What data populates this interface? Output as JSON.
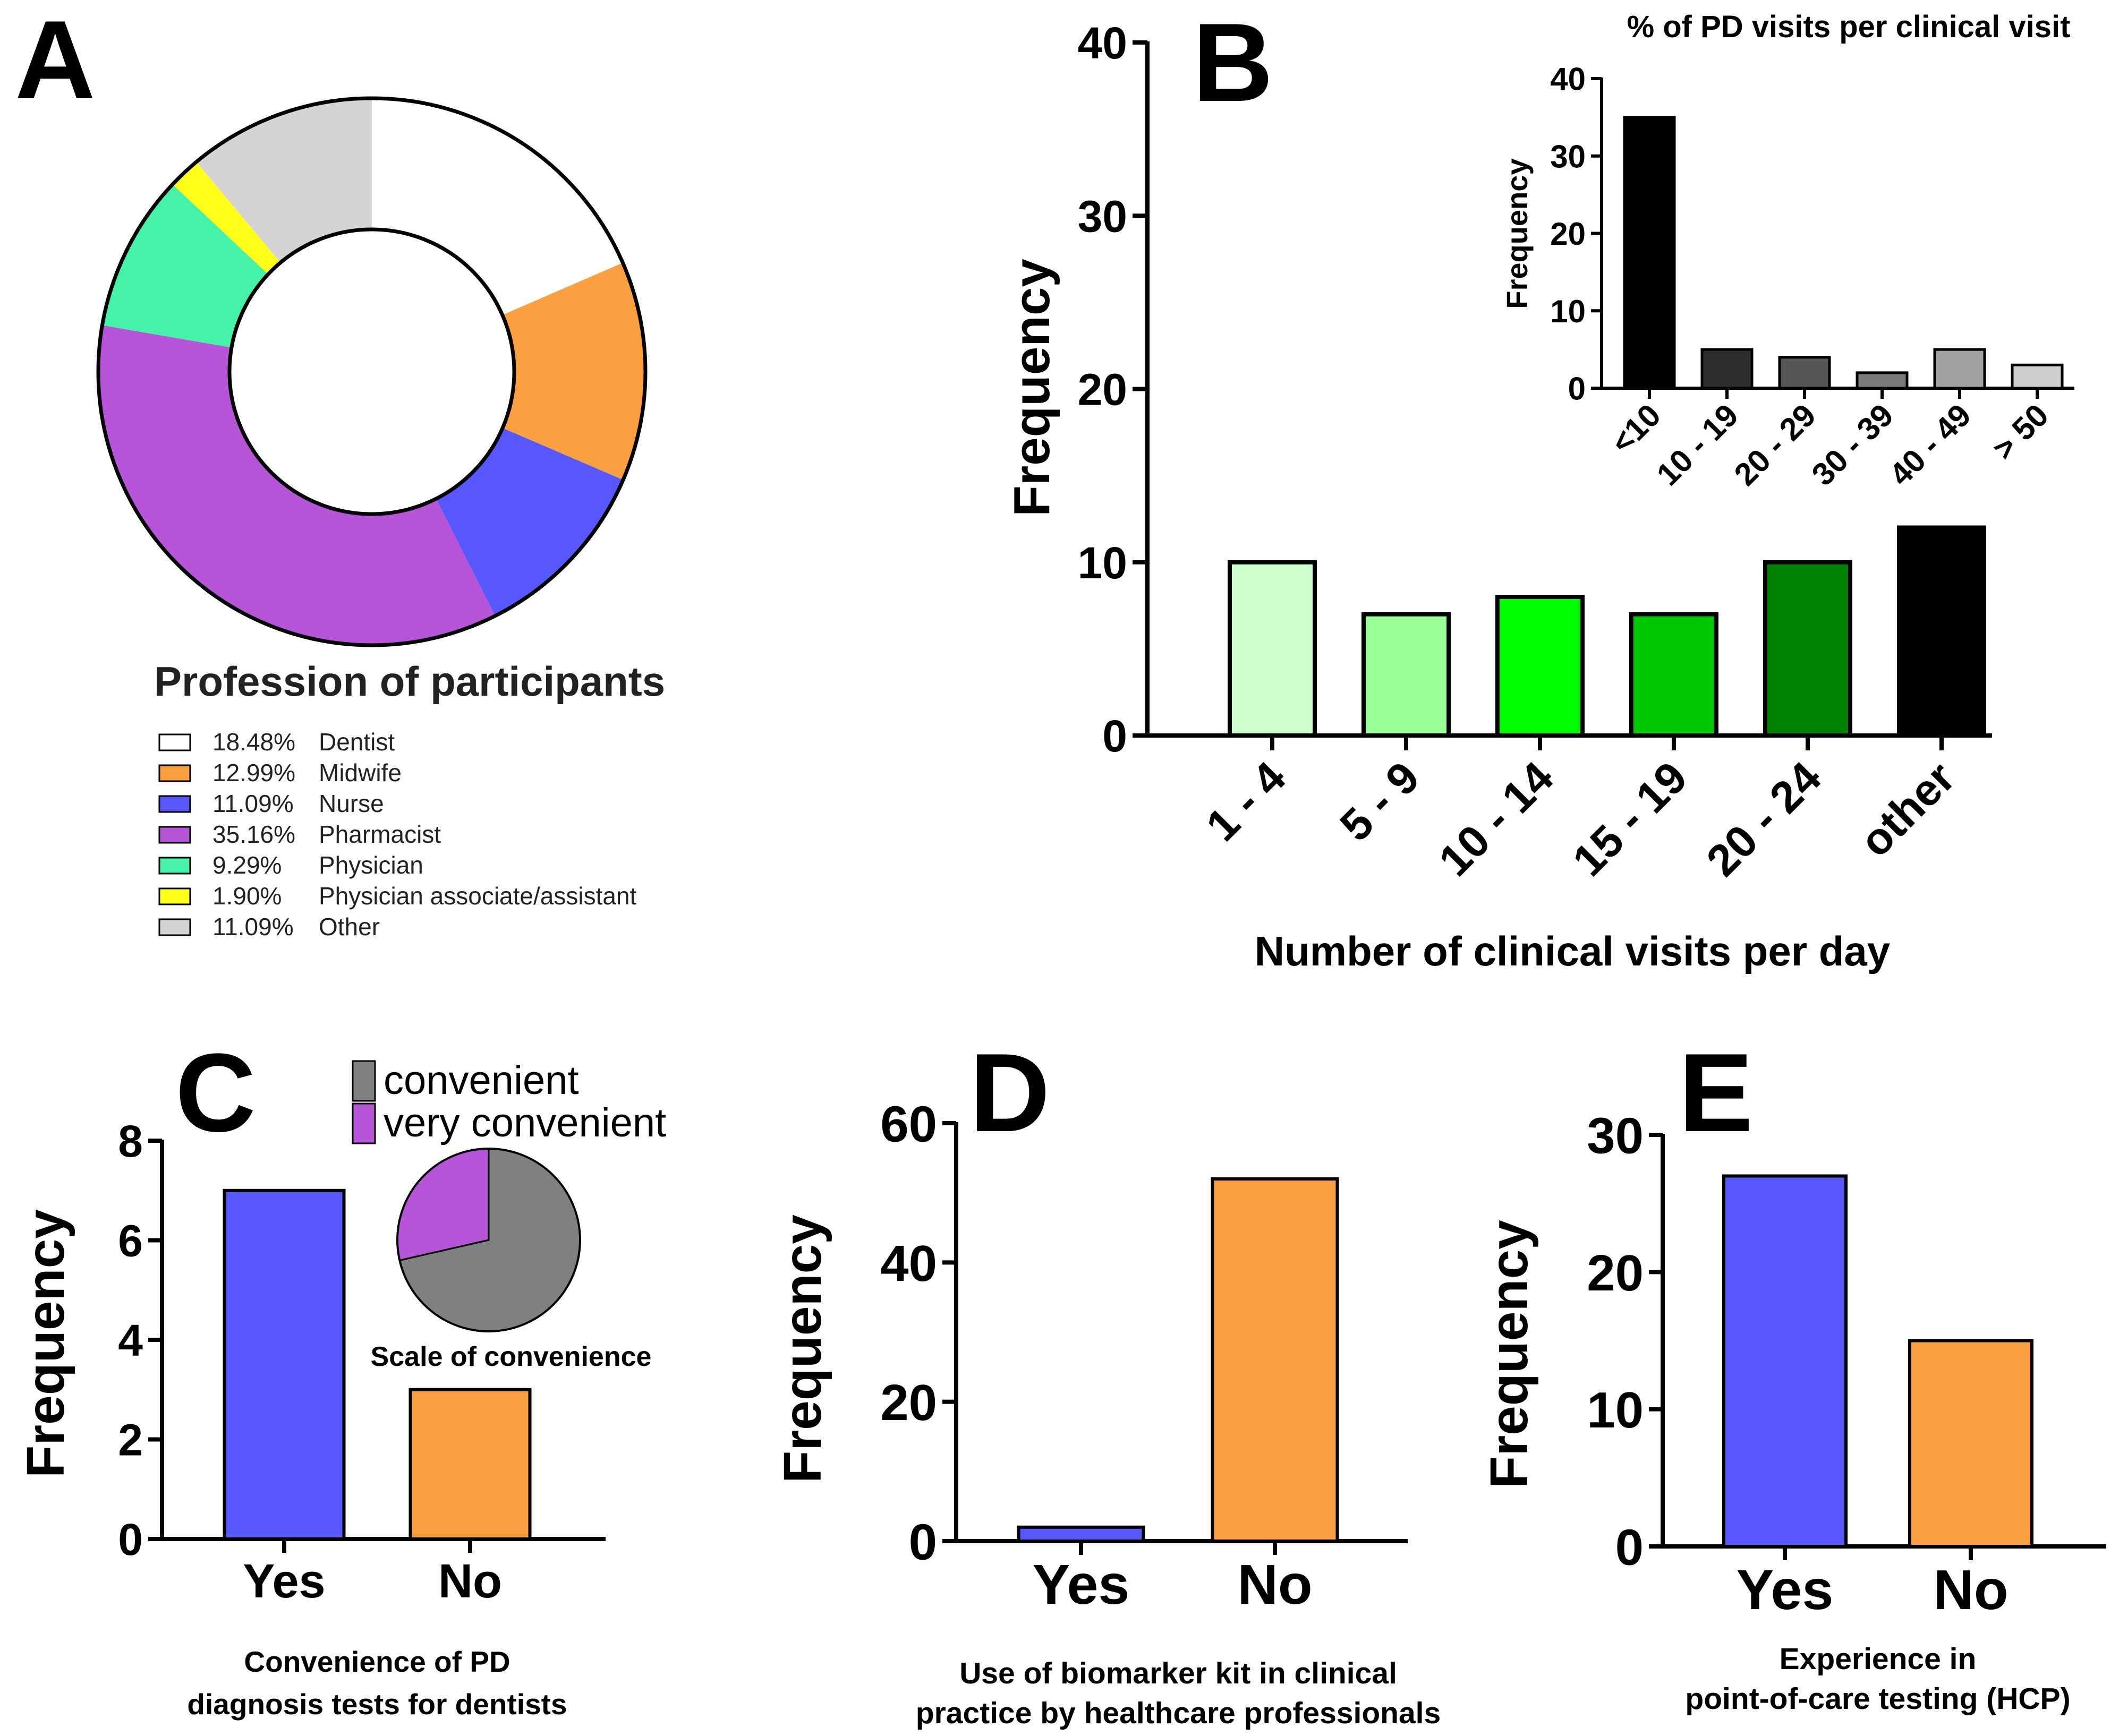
{
  "chart_data": [
    {
      "panel": "A",
      "type": "pie",
      "variant": "donut",
      "title": "Profession of participants",
      "slices": [
        {
          "label": "Dentist",
          "percent": 18.48,
          "display": "18.48%",
          "color": "#ffffff"
        },
        {
          "label": "Midwife",
          "percent": 12.99,
          "display": "12.99%",
          "color": "#fba040"
        },
        {
          "label": "Nurse",
          "percent": 11.09,
          "display": "11.09%",
          "color": "#5757fb"
        },
        {
          "label": "Pharmacist",
          "percent": 35.16,
          "display": "35.16%",
          "color": "#b655d8"
        },
        {
          "label": "Physician",
          "percent": 9.29,
          "display": "9.29%",
          "color": "#45f3a8"
        },
        {
          "label": "Physician associate/assistant",
          "percent": 1.9,
          "display": "1.90%",
          "color": "#ffff1a"
        },
        {
          "label": "Other",
          "percent": 11.09,
          "display": "11.09%",
          "color": "#d4d4d4"
        }
      ]
    },
    {
      "panel": "B",
      "type": "bar",
      "title": "",
      "xlabel": "Number of clinical visits per day",
      "ylabel": "Frequency",
      "ylim": [
        0,
        40
      ],
      "yticks": [
        0,
        10,
        20,
        30,
        40
      ],
      "categories": [
        "1 - 4",
        "5 - 9",
        "10 - 14",
        "15 - 19",
        "20 - 24",
        "other"
      ],
      "values": [
        10,
        7,
        8,
        7,
        10,
        12
      ],
      "colors": [
        "#ccffcc",
        "#99ff99",
        "#00ff00",
        "#00c800",
        "#008000",
        "#000000"
      ]
    },
    {
      "panel": "B-inset",
      "type": "bar",
      "title": "% of PD visits per clinical visit",
      "xlabel": "",
      "ylabel": "Frequency",
      "ylim": [
        0,
        40
      ],
      "yticks": [
        0,
        10,
        20,
        30,
        40
      ],
      "categories": [
        "<10",
        "10 - 19",
        "20 - 29",
        "30 - 39",
        "40 - 49",
        "> 50"
      ],
      "values": [
        35,
        5,
        4,
        2,
        5,
        3
      ],
      "colors": [
        "#000000",
        "#2d2d2d",
        "#555555",
        "#7b7b7b",
        "#a2a2a2",
        "#cfcfcf"
      ]
    },
    {
      "panel": "C",
      "type": "bar",
      "title": "",
      "xlabel": "Convenience of PD diagnosis tests for dentists",
      "xlabel_lines": [
        "Convenience of PD",
        "diagnosis tests for dentists"
      ],
      "ylabel": "Frequency",
      "ylim": [
        0,
        8
      ],
      "yticks": [
        0,
        2,
        4,
        6,
        8
      ],
      "categories": [
        "Yes",
        "No"
      ],
      "values": [
        7,
        3
      ],
      "colors": [
        "#5757fb",
        "#fba040"
      ]
    },
    {
      "panel": "C-inset",
      "type": "pie",
      "title": "Scale of convenience",
      "slices": [
        {
          "label": "convenient",
          "value": 5,
          "color": "#808080"
        },
        {
          "label": "very convenient",
          "value": 2,
          "color": "#b655d8"
        }
      ]
    },
    {
      "panel": "D",
      "type": "bar",
      "title": "",
      "xlabel": "Use of biomarker kit in clinical practice by healthcare professionals",
      "xlabel_lines": [
        "Use of biomarker kit in clinical",
        "practice by healthcare professionals"
      ],
      "ylabel": "Frequency",
      "ylim": [
        0,
        60
      ],
      "yticks": [
        0,
        20,
        40,
        60
      ],
      "categories": [
        "Yes",
        "No"
      ],
      "values": [
        2,
        52
      ],
      "colors": [
        "#5757fb",
        "#fba040"
      ]
    },
    {
      "panel": "E",
      "type": "bar",
      "title": "",
      "xlabel": "Experience in point-of-care testing (HCP)",
      "xlabel_lines": [
        "Experience in",
        "point-of-care testing (HCP)"
      ],
      "ylabel": "Frequency",
      "ylim": [
        0,
        30
      ],
      "yticks": [
        0,
        10,
        20,
        30
      ],
      "categories": [
        "Yes",
        "No"
      ],
      "values": [
        27,
        15
      ],
      "colors": [
        "#5757fb",
        "#fba040"
      ]
    }
  ]
}
